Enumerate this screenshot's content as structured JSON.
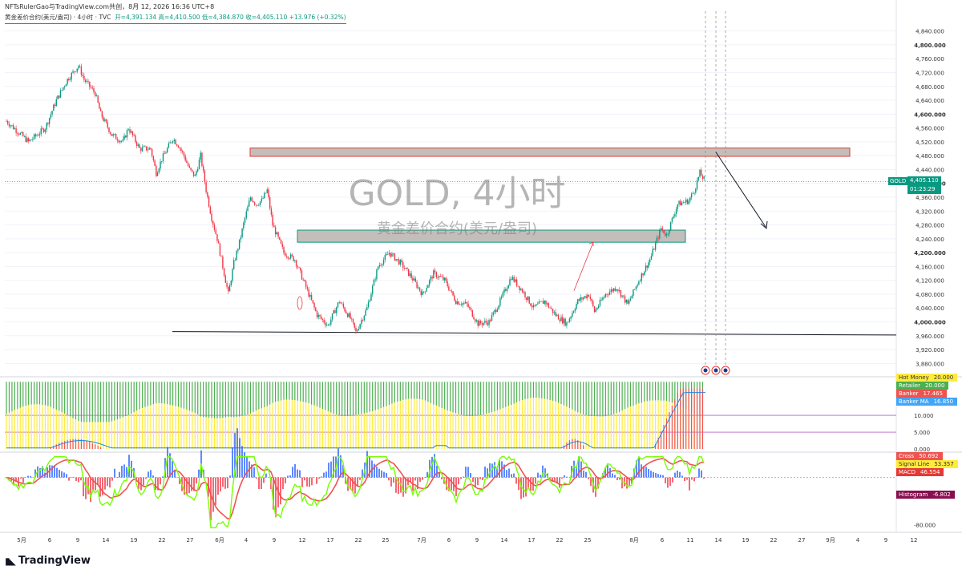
{
  "header": {
    "author_line": "NFTsRulerGao与TradingView.com共创，8月 12, 2026 16:36 UTC+8",
    "symbol_name": "黄金差价合约(美元/盎司) · 4小时 · TVC",
    "ohlc_open": "开=4,391.134",
    "ohlc_high": "高=4,410.500",
    "ohlc_low": "低=4,384.870",
    "ohlc_close": "收=4,405.110",
    "ohlc_change": "+13.976 (+0.32%)"
  },
  "watermark": {
    "title": "GOLD, 4小时",
    "subtitle": "黄金差价合约(美元/盎司)"
  },
  "brand": {
    "logo_text": "TradingView"
  },
  "price_tag": {
    "symbol": "GOLD",
    "price": "4,405.110",
    "countdown": "01:23:29"
  },
  "colors": {
    "up": "#089981",
    "down": "#f23645",
    "zone": "#b9b3ae",
    "indicator_yellow": "#ffeb3b",
    "indicator_green": "#4caf50"
  },
  "chart_data": {
    "type": "candlestick",
    "interval": "4小时",
    "ylim": [
      3860,
      4860
    ],
    "y_ticks": [
      "4,840.000",
      "4,800.000",
      "4,760.000",
      "4,720.000",
      "4,680.000",
      "4,640.000",
      "4,600.000",
      "4,560.000",
      "4,520.000",
      "4,480.000",
      "4,440.000",
      "4,400.000",
      "4,360.000",
      "4,320.000",
      "4,280.000",
      "4,240.000",
      "4,200.000",
      "4,160.000",
      "4,120.000",
      "4,080.000",
      "4,040.000",
      "4,000.000",
      "3,960.000",
      "3,920.000",
      "3,880.000"
    ],
    "x_ticks": [
      "5月",
      "6",
      "9",
      "14",
      "19",
      "22",
      "27",
      "6月",
      "4",
      "9",
      "12",
      "17",
      "22",
      "25",
      "7月",
      "6",
      "9",
      "14",
      "17",
      "22",
      "25",
      "8月",
      "6",
      "11",
      "14",
      "19",
      "22",
      "27",
      "9月",
      "4",
      "9",
      "12"
    ],
    "price_path": [
      [
        0,
        4580
      ],
      [
        4,
        4520
      ],
      [
        7,
        4560
      ],
      [
        9,
        4640
      ],
      [
        11,
        4700
      ],
      [
        13,
        4740
      ],
      [
        14,
        4700
      ],
      [
        16,
        4660
      ],
      [
        17,
        4600
      ],
      [
        19,
        4540
      ],
      [
        21,
        4520
      ],
      [
        22,
        4560
      ],
      [
        24,
        4500
      ],
      [
        26,
        4500
      ],
      [
        27,
        4430
      ],
      [
        28,
        4470
      ],
      [
        30,
        4530
      ],
      [
        31,
        4510
      ],
      [
        32,
        4480
      ],
      [
        33,
        4440
      ],
      [
        34,
        4420
      ],
      [
        35,
        4480
      ],
      [
        36,
        4380
      ],
      [
        37,
        4300
      ],
      [
        38,
        4240
      ],
      [
        39,
        4160
      ],
      [
        40,
        4080
      ],
      [
        41,
        4170
      ],
      [
        42,
        4230
      ],
      [
        43,
        4300
      ],
      [
        44,
        4360
      ],
      [
        45,
        4340
      ],
      [
        46,
        4350
      ],
      [
        47,
        4380
      ],
      [
        48,
        4280
      ],
      [
        50,
        4200
      ],
      [
        52,
        4180
      ],
      [
        54,
        4100
      ],
      [
        56,
        4020
      ],
      [
        58,
        3990
      ],
      [
        60,
        4060
      ],
      [
        62,
        4010
      ],
      [
        63,
        3970
      ],
      [
        65,
        4040
      ],
      [
        67,
        4160
      ],
      [
        69,
        4200
      ],
      [
        71,
        4170
      ],
      [
        73,
        4130
      ],
      [
        75,
        4080
      ],
      [
        77,
        4140
      ],
      [
        79,
        4120
      ],
      [
        81,
        4060
      ],
      [
        83,
        4050
      ],
      [
        85,
        3995
      ],
      [
        87,
        4000
      ],
      [
        89,
        4060
      ],
      [
        91,
        4130
      ],
      [
        93,
        4090
      ],
      [
        95,
        4040
      ],
      [
        97,
        4060
      ],
      [
        99,
        4020
      ],
      [
        101,
        3995
      ],
      [
        103,
        4060
      ],
      [
        105,
        4080
      ],
      [
        106,
        4030
      ],
      [
        108,
        4080
      ],
      [
        110,
        4100
      ],
      [
        112,
        4050
      ],
      [
        114,
        4120
      ],
      [
        116,
        4180
      ],
      [
        118,
        4270
      ],
      [
        119,
        4250
      ],
      [
        121,
        4340
      ],
      [
        123,
        4350
      ],
      [
        124,
        4380
      ],
      [
        125,
        4430
      ],
      [
        126,
        4405
      ]
    ],
    "annotations": {
      "upper_zone": [
        4478,
        4502
      ],
      "middle_zone": [
        4230,
        4265
      ],
      "support_line": [
        3972,
        3962
      ],
      "projection_arrow": {
        "from": [
          129,
          4490
        ],
        "to": [
          140,
          4270
        ]
      },
      "small_arrow": {
        "from": [
          102,
          4090
        ],
        "to": [
          107,
          4230
        ]
      }
    },
    "indicator1": {
      "ylim": [
        0,
        21
      ],
      "levels": [
        10,
        5
      ],
      "y_ticks": [
        "20.000",
        "10.000",
        "5.000",
        "0.000"
      ],
      "legend": [
        {
          "name": "Hot Money",
          "value": "20.000",
          "color": "#ffeb3b",
          "text_color": "#333333"
        },
        {
          "name": "Retailer",
          "value": "20.000",
          "color": "#4caf50",
          "text_color": "#ffffff"
        },
        {
          "name": "Banker",
          "value": "17.465",
          "color": "#ef5350",
          "text_color": "#ffffff"
        },
        {
          "name": "Banker MA",
          "value": "16.850",
          "color": "#42a5f5",
          "text_color": "#ffffff"
        }
      ]
    },
    "indicator2": {
      "ylim": [
        -90,
        40
      ],
      "y_ticks": [
        "-80.000"
      ],
      "legend": [
        {
          "name": "Cross",
          "value": "50.692",
          "color": "#ef5350",
          "text_color": "#ffffff"
        },
        {
          "name": "Signal Line",
          "value": "53.357",
          "color": "#ffeb3b",
          "text_color": "#333333"
        },
        {
          "name": "MACD",
          "value": "46.554",
          "color": "#e53935",
          "text_color": "#ffffff"
        },
        {
          "name": "Histogram",
          "value": "-6.802",
          "color": "#880e4f",
          "text_color": "#ffffff"
        }
      ]
    }
  }
}
